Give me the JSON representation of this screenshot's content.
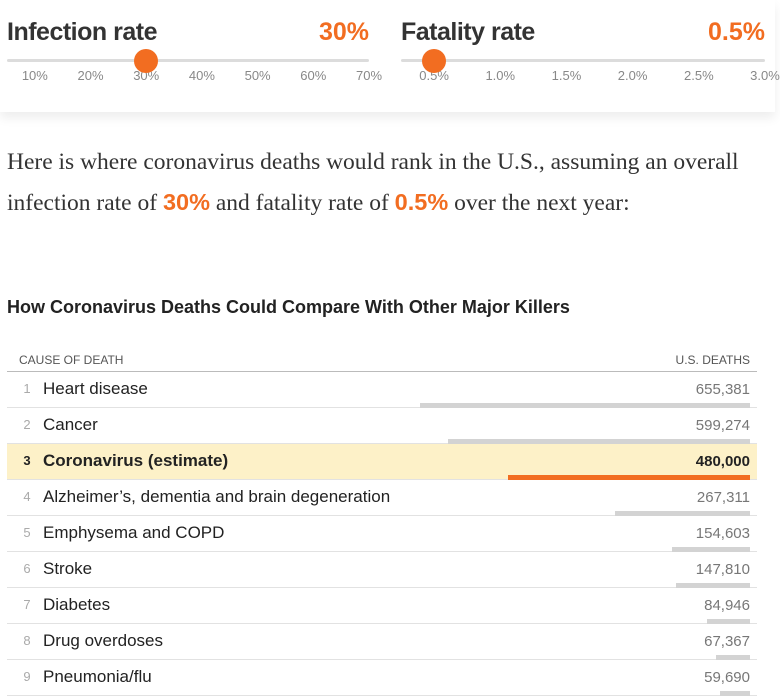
{
  "colors": {
    "accent": "#f26d21",
    "bar": "#d3d3d3",
    "highlight_bg": "#fdf1c8"
  },
  "sliders": {
    "infection": {
      "title": "Infection rate",
      "value_label": "30%",
      "value": 30,
      "min": 5,
      "max": 70,
      "ticks": [
        {
          "label": "10%",
          "value": 10
        },
        {
          "label": "20%",
          "value": 20
        },
        {
          "label": "30%",
          "value": 30
        },
        {
          "label": "40%",
          "value": 40
        },
        {
          "label": "50%",
          "value": 50
        },
        {
          "label": "60%",
          "value": 60
        },
        {
          "label": "70%",
          "value": 70
        }
      ]
    },
    "fatality": {
      "title": "Fatality rate",
      "value_label": "0.5%",
      "value": 0.5,
      "min": 0.25,
      "max": 3.0,
      "ticks": [
        {
          "label": "0.5%",
          "value": 0.5
        },
        {
          "label": "1.0%",
          "value": 1.0
        },
        {
          "label": "1.5%",
          "value": 1.5
        },
        {
          "label": "2.0%",
          "value": 2.0
        },
        {
          "label": "2.5%",
          "value": 2.5
        },
        {
          "label": "3.0%",
          "value": 3.0
        }
      ]
    }
  },
  "summary": {
    "part1": "Here is where coronavirus deaths would rank in the U.S., assuming an overall infection rate of ",
    "infection": "30%",
    "part2": " and fatality rate of ",
    "fatality": "0.5%",
    "part3": " over the next year:"
  },
  "chart_data": {
    "type": "table",
    "title": "How Coronavirus Deaths Could Compare With Other Major Killers",
    "columns": [
      "CAUSE OF DEATH",
      "U.S. DEATHS"
    ],
    "max_value": 655381,
    "rows": [
      {
        "rank": "1",
        "cause": "Heart disease",
        "deaths_label": "655,381",
        "deaths": 655381,
        "highlight": false
      },
      {
        "rank": "2",
        "cause": "Cancer",
        "deaths_label": "599,274",
        "deaths": 599274,
        "highlight": false
      },
      {
        "rank": "3",
        "cause": "Coronavirus (estimate)",
        "deaths_label": "480,000",
        "deaths": 480000,
        "highlight": true
      },
      {
        "rank": "4",
        "cause": "Alzheimer’s, dementia and brain degeneration",
        "deaths_label": "267,311",
        "deaths": 267311,
        "highlight": false
      },
      {
        "rank": "5",
        "cause": "Emphysema and COPD",
        "deaths_label": "154,603",
        "deaths": 154603,
        "highlight": false
      },
      {
        "rank": "6",
        "cause": "Stroke",
        "deaths_label": "147,810",
        "deaths": 147810,
        "highlight": false
      },
      {
        "rank": "7",
        "cause": "Diabetes",
        "deaths_label": "84,946",
        "deaths": 84946,
        "highlight": false
      },
      {
        "rank": "8",
        "cause": "Drug overdoses",
        "deaths_label": "67,367",
        "deaths": 67367,
        "highlight": false
      },
      {
        "rank": "9",
        "cause": "Pneumonia/flu",
        "deaths_label": "59,690",
        "deaths": 59690,
        "highlight": false
      }
    ]
  }
}
